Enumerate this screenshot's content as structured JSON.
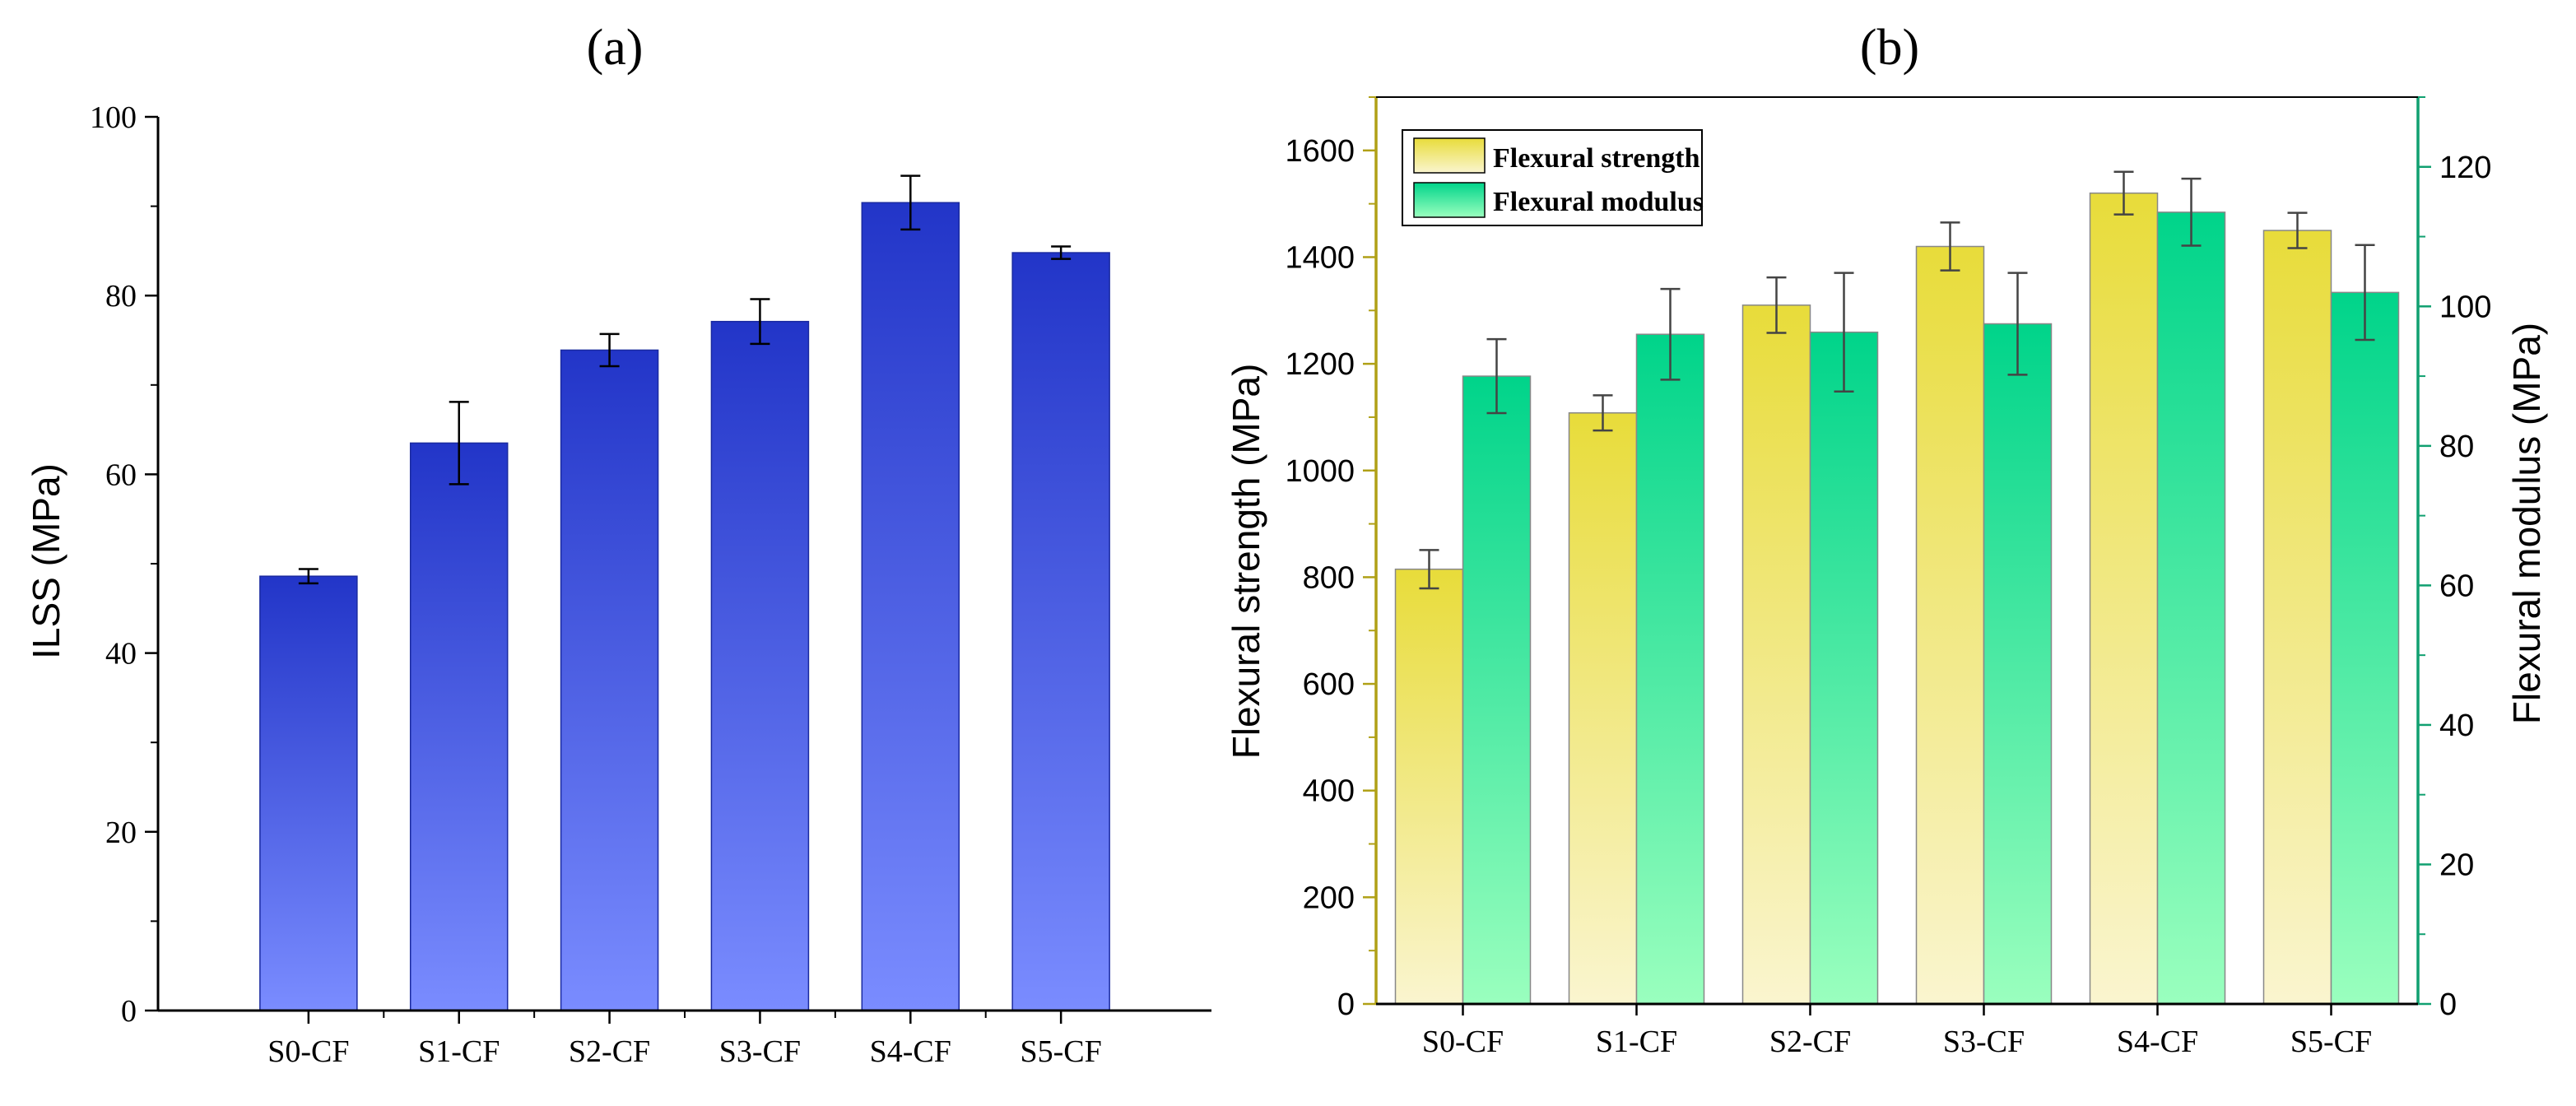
{
  "chart_data": [
    {
      "panel_label": "(a)",
      "type": "bar",
      "title": "",
      "xlabel": "",
      "ylabel": "ILSS (MPa)",
      "ylim": [
        0,
        100
      ],
      "yticks": [
        0,
        20,
        40,
        60,
        80,
        100
      ],
      "tick_labels_y": [
        "0",
        "20",
        "40",
        "60",
        "80",
        "100"
      ],
      "categories": [
        "S0-CF",
        "S1-CF",
        "S2-CF",
        "S3-CF",
        "S4-CF",
        "S5-CF"
      ],
      "values": [
        48.6,
        63.5,
        73.9,
        77.1,
        90.4,
        84.8
      ],
      "errors": [
        0.8,
        4.6,
        1.8,
        2.5,
        3.0,
        0.7
      ],
      "colors": {
        "top": "#2235c8",
        "bottom": "#7a8cff",
        "axis": "#000000"
      }
    },
    {
      "panel_label": "(b)",
      "type": "bar",
      "title": "",
      "xlabel": "",
      "ylabel": "Flexural strength (MPa)",
      "y2label": "Flexural modulus (MPa)",
      "ylim": [
        0,
        1700
      ],
      "y2lim": [
        0,
        130
      ],
      "yticks": [
        0,
        200,
        400,
        600,
        800,
        1000,
        1200,
        1400,
        1600
      ],
      "tick_labels_y": [
        "0",
        "200",
        "400",
        "600",
        "800",
        "1000",
        "1200",
        "1400",
        "1600"
      ],
      "y2ticks": [
        0,
        20,
        40,
        60,
        80,
        100,
        120
      ],
      "tick_labels_y2": [
        "0",
        "20",
        "40",
        "60",
        "80",
        "100",
        "120"
      ],
      "categories": [
        "S0-CF",
        "S1-CF",
        "S2-CF",
        "S3-CF",
        "S4-CF",
        "S5-CF"
      ],
      "legend_position": "top-left",
      "series": [
        {
          "name": "Flexural strength",
          "axis": "left",
          "values": [
            815,
            1108,
            1310,
            1420,
            1520,
            1450
          ],
          "errors": [
            36,
            33,
            52,
            45,
            40,
            33
          ],
          "colors": {
            "top": "#e8dc3a",
            "bottom": "#faf5cf"
          }
        },
        {
          "name": "Flexural modulus",
          "axis": "right",
          "values": [
            90,
            96,
            96.3,
            97.5,
            113.5,
            102
          ],
          "errors": [
            5.3,
            6.5,
            8.5,
            7.3,
            4.8,
            6.8
          ],
          "colors": {
            "top": "#00d48a",
            "bottom": "#9affbe"
          }
        }
      ],
      "colors": {
        "left_axis": "#b0a016",
        "right_axis": "#10a070"
      }
    }
  ]
}
